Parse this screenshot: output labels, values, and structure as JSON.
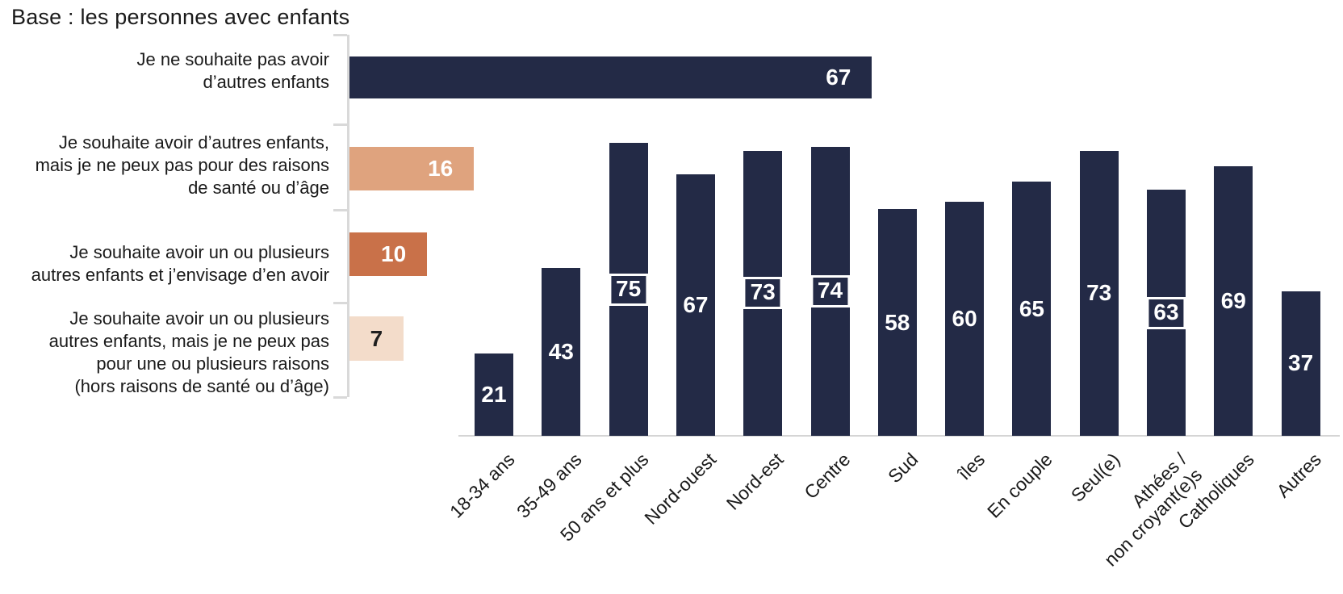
{
  "page": {
    "title": "Base : les personnes avec enfants"
  },
  "colors": {
    "navy": "#232A46",
    "salmon": "#DFA37E",
    "orange": "#C97149",
    "peach": "#F3DCCA",
    "axis": "#D9D9D9",
    "baseline": "#D5D5D5",
    "text": "#1A1A1A",
    "value_light": "#FFFFFF",
    "value_dark": "#1F1F1F"
  },
  "chart_data": [
    {
      "type": "bar",
      "orientation": "horizontal",
      "title": "Base : les personnes avec enfants",
      "categories": [
        "Je ne souhaite pas avoir\nd’autres enfants",
        "Je souhaite avoir d’autres enfants,\nmais je ne peux pas pour des raisons\nde santé ou d’âge",
        "Je souhaite avoir un ou plusieurs\nautres enfants et j’envisage d’en avoir",
        "Je souhaite avoir un ou plusieurs\nautres enfants, mais je ne peux pas\npour une ou plusieurs raisons\n(hors raisons de santé ou d’âge)"
      ],
      "values": [
        67,
        16,
        10,
        7
      ],
      "bar_colors": [
        "#232A46",
        "#DFA37E",
        "#C97149",
        "#F3DCCA"
      ],
      "value_colors": [
        "#FFFFFF",
        "#FFFFFF",
        "#FFFFFF",
        "#1F1F1F"
      ],
      "xlim": [
        0,
        67
      ],
      "grid": false,
      "legend": false
    },
    {
      "type": "bar",
      "orientation": "vertical",
      "categories": [
        "18-34 ans",
        "35-49 ans",
        "50 ans et plus",
        "Nord-ouest",
        "Nord-est",
        "Centre",
        "Sud",
        "îles",
        "En couple",
        "Seul(e)",
        "Athées /\nnon croyant(e)s",
        "Catholiques",
        "Autres"
      ],
      "values": [
        21,
        43,
        75,
        67,
        73,
        74,
        58,
        60,
        65,
        73,
        63,
        69,
        37
      ],
      "boxed": [
        false,
        false,
        true,
        false,
        true,
        true,
        false,
        false,
        false,
        false,
        true,
        false,
        false
      ],
      "bar_color": "#232A46",
      "value_color": "#FFFFFF",
      "ylim": [
        0,
        75
      ],
      "grid": false,
      "legend": false
    }
  ]
}
